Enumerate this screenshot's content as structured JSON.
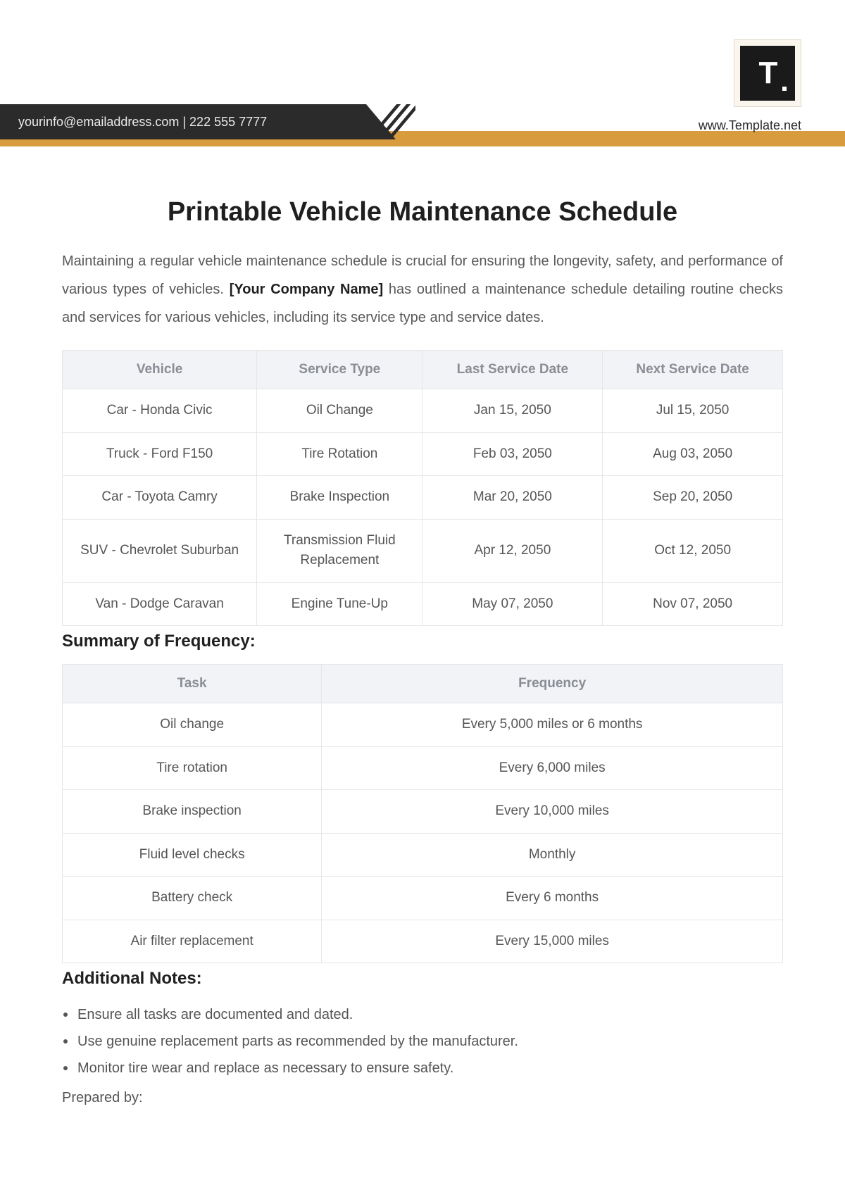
{
  "header": {
    "contact_line": "yourinfo@emailaddress.com  |  222 555 7777",
    "site_url": "www.Template.net",
    "logo_text": "T",
    "accent_color": "#d89b3d",
    "dark_bar_color": "#2b2b2b"
  },
  "title": "Printable Vehicle Maintenance Schedule",
  "intro": {
    "text_before": "Maintaining a regular vehicle maintenance schedule is crucial for ensuring the longevity, safety, and performance of various types of vehicles. ",
    "company_placeholder": "[Your Company Name]",
    "text_after": " has outlined a maintenance schedule detailing routine checks and services for various vehicles, including its service type and service dates."
  },
  "table1": {
    "columns": [
      "Vehicle",
      "Service Type",
      "Last Service Date",
      "Next Service Date"
    ],
    "rows": [
      [
        "Car - Honda Civic",
        "Oil Change",
        "Jan 15, 2050",
        "Jul 15, 2050"
      ],
      [
        "Truck - Ford F150",
        "Tire Rotation",
        "Feb 03, 2050",
        "Aug 03, 2050"
      ],
      [
        "Car - Toyota Camry",
        "Brake Inspection",
        "Mar 20, 2050",
        "Sep 20, 2050"
      ],
      [
        "SUV - Chevrolet Suburban",
        "Transmission Fluid Replacement",
        "Apr 12, 2050",
        "Oct 12, 2050"
      ],
      [
        "Van - Dodge Caravan",
        "Engine Tune-Up",
        "May 07, 2050",
        "Nov 07, 2050"
      ]
    ]
  },
  "summary_heading": "Summary of Frequency:",
  "table2": {
    "columns": [
      "Task",
      "Frequency"
    ],
    "rows": [
      [
        "Oil change",
        "Every 5,000 miles or 6 months"
      ],
      [
        "Tire rotation",
        "Every 6,000 miles"
      ],
      [
        "Brake inspection",
        "Every 10,000 miles"
      ],
      [
        "Fluid level checks",
        "Monthly"
      ],
      [
        "Battery check",
        "Every 6 months"
      ],
      [
        "Air filter replacement",
        "Every 15,000 miles"
      ]
    ]
  },
  "notes_heading": "Additional Notes:",
  "notes": [
    "Ensure all tasks are documented and dated.",
    "Use genuine replacement parts as recommended by the manufacturer.",
    "Monitor tire wear and replace as necessary to ensure safety."
  ],
  "prepared_by_label": "Prepared by:"
}
